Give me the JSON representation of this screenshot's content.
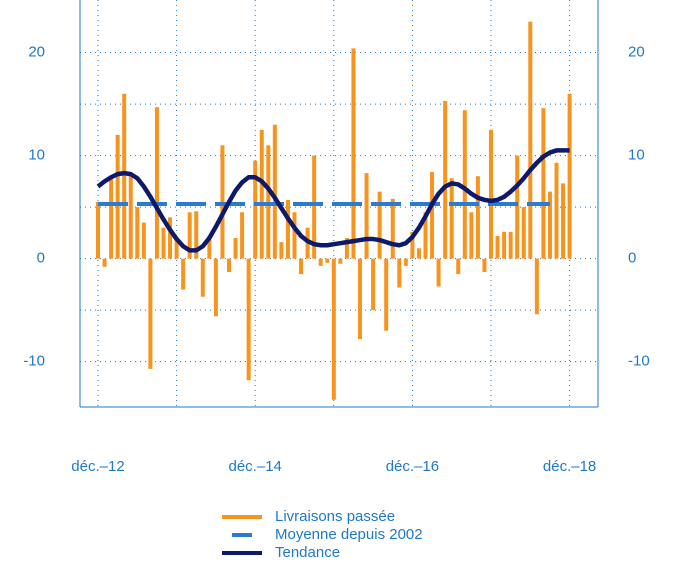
{
  "chart_data": {
    "type": "bar_line",
    "categories": [
      "déc.–12",
      null,
      null,
      null,
      null,
      null,
      null,
      null,
      null,
      null,
      null,
      null,
      null,
      null,
      null,
      null,
      null,
      null,
      null,
      null,
      null,
      null,
      null,
      null,
      "déc.–14",
      null,
      null,
      null,
      null,
      null,
      null,
      null,
      null,
      null,
      null,
      null,
      null,
      null,
      null,
      null,
      null,
      null,
      null,
      null,
      null,
      null,
      null,
      null,
      "déc.–16",
      null,
      null,
      null,
      null,
      null,
      null,
      null,
      null,
      null,
      null,
      null,
      null,
      null,
      null,
      null,
      null,
      null,
      null,
      null,
      null,
      null,
      null,
      null,
      "déc.–18"
    ],
    "series": [
      {
        "name": "Livraisons passée",
        "kind": "bar",
        "color": "#f7941d",
        "values": [
          5.5,
          -0.8,
          8,
          12,
          16,
          8,
          5,
          3.5,
          -10.7,
          14.7,
          3,
          4,
          2,
          -3,
          4.5,
          4.6,
          -3.7,
          2.2,
          -5.6,
          11,
          -1.3,
          2,
          4.5,
          -11.8,
          9.5,
          12.5,
          11,
          13,
          1.6,
          5.7,
          4.5,
          -1.5,
          3,
          10,
          -0.7,
          -0.4,
          -13.7,
          -0.5,
          2,
          20.4,
          -7.8,
          8.3,
          -5,
          6.5,
          -7,
          5.8,
          -2.8,
          -0.7,
          2.6,
          1,
          4.5,
          8.4,
          -2.7,
          15.3,
          7.8,
          -1.5,
          14.4,
          4.5,
          8,
          -1.3,
          12.5,
          2.2,
          2.6,
          2.6,
          10,
          5,
          23,
          -5.4,
          14.6,
          6.5,
          9.3,
          7.3,
          16
        ]
      },
      {
        "name": "Moyenne depuis 2002",
        "kind": "dashed",
        "color": "#2b7bd0",
        "values": [
          5.3,
          5.3,
          5.3,
          5.3,
          5.3,
          5.3,
          5.3,
          5.3,
          5.3,
          5.3,
          5.3,
          5.3,
          5.3,
          5.3,
          5.3,
          5.3,
          5.3,
          5.3,
          5.3,
          5.3,
          5.3,
          5.3,
          5.3,
          5.3,
          5.3,
          5.3,
          5.3,
          5.3,
          5.3,
          5.3,
          5.3,
          5.3,
          5.3,
          5.3,
          5.3,
          5.3,
          5.3,
          5.3,
          5.3,
          5.3,
          5.3,
          5.3,
          5.3,
          5.3,
          5.3,
          5.3,
          5.3,
          5.3,
          5.3,
          5.3,
          5.3,
          5.3,
          5.3,
          5.3,
          5.3,
          5.3,
          5.3,
          5.3,
          5.3,
          5.3,
          5.3,
          5.3,
          5.3,
          5.3,
          5.3,
          5.3,
          5.3,
          5.3,
          5.3,
          5.3,
          null,
          null,
          null
        ]
      },
      {
        "name": "Tendance",
        "kind": "line",
        "color": "#0d1a6b",
        "values": [
          7.0,
          7.5,
          7.9,
          8.2,
          8.3,
          8.2,
          7.8,
          7.0,
          6.0,
          4.9,
          3.8,
          2.8,
          1.9,
          1.2,
          0.8,
          0.8,
          1.2,
          2.0,
          3.1,
          4.3,
          5.5,
          6.6,
          7.4,
          7.9,
          7.9,
          7.5,
          6.8,
          5.9,
          4.9,
          3.9,
          3.0,
          2.2,
          1.7,
          1.4,
          1.3,
          1.3,
          1.4,
          1.5,
          1.6,
          1.7,
          1.8,
          1.9,
          1.9,
          1.8,
          1.6,
          1.4,
          1.3,
          1.5,
          2.1,
          3.0,
          4.1,
          5.3,
          6.3,
          7.0,
          7.3,
          7.2,
          6.8,
          6.3,
          5.9,
          5.7,
          5.6,
          5.7,
          6.0,
          6.5,
          7.1,
          7.8,
          8.6,
          9.3,
          9.9,
          10.3,
          10.5,
          10.5,
          10.5
        ]
      }
    ],
    "ylim": [
      -14.4,
      25.1
    ],
    "yticks": [
      -10,
      0,
      10,
      20
    ],
    "ygrid": [
      -10,
      -5,
      0,
      5,
      10,
      15,
      20
    ],
    "grid": true
  }
}
